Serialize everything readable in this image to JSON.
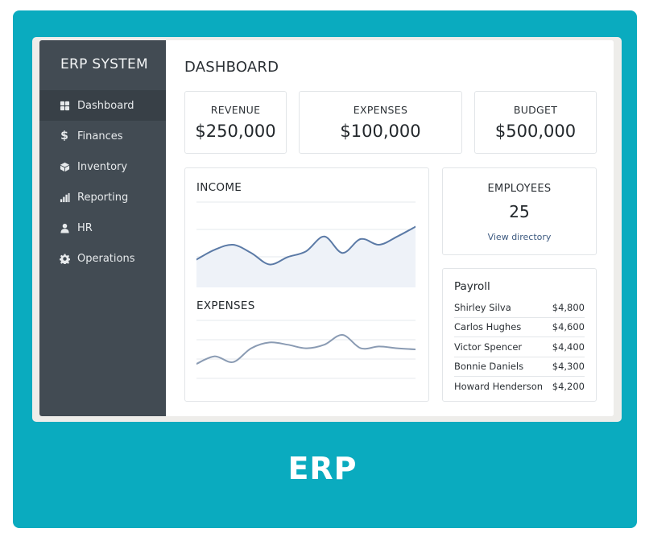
{
  "app": {
    "brand": "ERP SYSTEM",
    "footer_label": "ERP"
  },
  "colors": {
    "accent": "#0aabbf",
    "sidebar": "#424b53",
    "chart_line": "#5b7aa6"
  },
  "sidebar": {
    "items": [
      {
        "label": "Dashboard",
        "icon": "dashboard-icon",
        "active": true
      },
      {
        "label": "Finances",
        "icon": "dollar-icon",
        "active": false
      },
      {
        "label": "Inventory",
        "icon": "box-icon",
        "active": false
      },
      {
        "label": "Reporting",
        "icon": "bar-chart-icon",
        "active": false
      },
      {
        "label": "HR",
        "icon": "user-icon",
        "active": false
      },
      {
        "label": "Operations",
        "icon": "gear-icon",
        "active": false
      }
    ]
  },
  "main": {
    "title": "DASHBOARD",
    "stats": [
      {
        "label": "REVENUE",
        "value": "$250,000"
      },
      {
        "label": "EXPENSES",
        "value": "$100,000"
      },
      {
        "label": "BUDGET",
        "value": "$500,000"
      }
    ],
    "income_title": "INCOME",
    "expenses_title": "EXPENSES",
    "employees": {
      "label": "EMPLOYEES",
      "count": "25",
      "link": "View directory"
    },
    "payroll": {
      "title": "Payroll",
      "rows": [
        {
          "name": "Shirley Silva",
          "amount": "$4,800"
        },
        {
          "name": "Carlos Hughes",
          "amount": "$4,600"
        },
        {
          "name": "Victor Spencer",
          "amount": "$4,400"
        },
        {
          "name": "Bonnie Daniels",
          "amount": "$4,300"
        },
        {
          "name": "Howard Henderson",
          "amount": "$4,200"
        }
      ]
    }
  },
  "chart_data": [
    {
      "type": "area",
      "title": "INCOME",
      "x": [
        0,
        1,
        2,
        3,
        4,
        5,
        6,
        7,
        8,
        9,
        10,
        11,
        12
      ],
      "values": [
        30,
        42,
        48,
        38,
        24,
        33,
        40,
        58,
        38,
        55,
        48,
        58,
        70
      ],
      "ylim": [
        0,
        100
      ],
      "grid": true
    },
    {
      "type": "line",
      "title": "EXPENSES",
      "x": [
        0,
        1,
        2,
        3,
        4,
        5,
        6,
        7,
        8,
        9,
        10,
        11,
        12
      ],
      "values": [
        25,
        38,
        28,
        52,
        62,
        58,
        52,
        58,
        75,
        52,
        55,
        52,
        50
      ],
      "ylim": [
        0,
        100
      ],
      "grid": true
    }
  ]
}
